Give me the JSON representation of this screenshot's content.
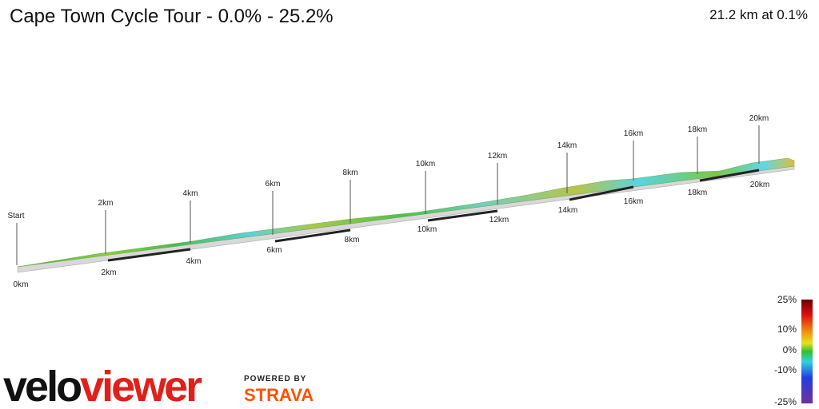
{
  "header": {
    "title": "Cape Town Cycle Tour - 0.0% - 25.2%",
    "summary": "21.2 km at 0.1%"
  },
  "profile": {
    "upper_markers": [
      "Start",
      "2km",
      "4km",
      "6km",
      "8km",
      "10km",
      "12km",
      "14km",
      "16km",
      "18km",
      "20km"
    ],
    "lower_markers": [
      "0km",
      "2km",
      "4km",
      "6km",
      "8km",
      "10km",
      "12km",
      "14km",
      "16km",
      "18km",
      "20km"
    ]
  },
  "legend": {
    "labels": [
      "25%",
      "10%",
      "0%",
      "-10%",
      "-25%"
    ]
  },
  "branding": {
    "logo_dark": "velo",
    "logo_red": "viewer",
    "powered_by": "POWERED BY",
    "partner": "STRAVA"
  }
}
